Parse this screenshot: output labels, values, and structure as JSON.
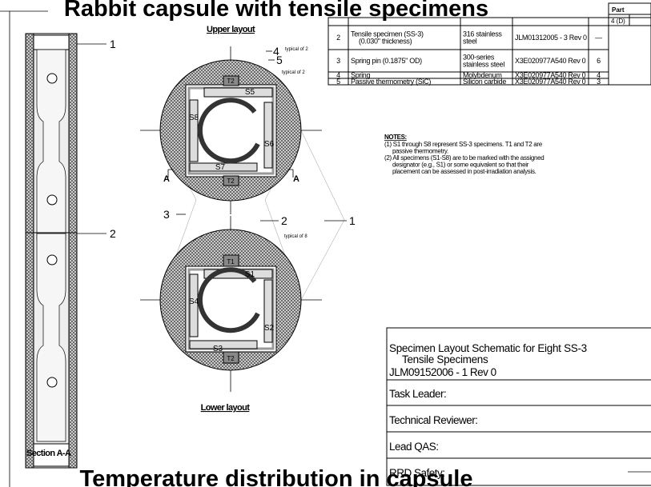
{
  "title": "Rabbit capsule with tensile specimens",
  "footer_title": "Temperature distribution in capsule",
  "section": {
    "label": "Section A-A",
    "callouts": [
      "1",
      "2"
    ]
  },
  "upper_layout": {
    "label": "Upper layout",
    "specimens": [
      "S5",
      "S8",
      "S6",
      "S7"
    ],
    "thermometry": [
      "T2",
      "T2"
    ],
    "section_marks": [
      "A",
      "A"
    ],
    "callouts": [
      {
        "number": "4",
        "note": "typical of 2"
      },
      {
        "number": "5",
        "note": "typical of 2"
      },
      {
        "number": "3"
      },
      {
        "number": "2",
        "note": "typical of 8"
      },
      {
        "number": "1"
      }
    ]
  },
  "lower_layout": {
    "label": "Lower layout",
    "specimens": [
      "S1",
      "S4",
      "S2",
      "S3"
    ],
    "thermometry": [
      "T1",
      "T2"
    ]
  },
  "parts_table": {
    "header": [
      "Part",
      "4 (D)"
    ],
    "rows": [
      [
        "2",
        "Tensile specimen (SS-3) (0.030\" thickness)",
        "316 stainless steel",
        "JLM01312005 - 3 Rev 0",
        "—"
      ],
      [
        "3",
        "Spring pin (0.1875\" OD)",
        "300-series stainless steel",
        "X3E020977A540 Rev 0",
        "6"
      ],
      [
        "4",
        "Spring",
        "Molybdenum",
        "X3E020977A540 Rev 0",
        "4"
      ],
      [
        "5",
        "Passive thermometry (SiC)",
        "Silicon carbide",
        "X3E020977A540 Rev 0",
        "3"
      ]
    ]
  },
  "notes": {
    "heading": "NOTES:",
    "items": [
      "(1) S1 through S8 represent SS-3 specimens.  T1 and T2 are passive thermometry.",
      "(2) All specimens (S1-S8) are to be marked with the assigned designator (e.g., S1) or some equivalent so that their placement can be assessed in post-irradiation analysis."
    ]
  },
  "title_block": {
    "drawing_title": "Specimen Layout Schematic for Eight SS-3 Tensile Specimens",
    "drawing_number": "JLM09152006 - 1 Rev 0",
    "fields": [
      "Task Leader:",
      "Technical Reviewer:",
      "Lead QAS:",
      "RRD Safety:"
    ]
  }
}
